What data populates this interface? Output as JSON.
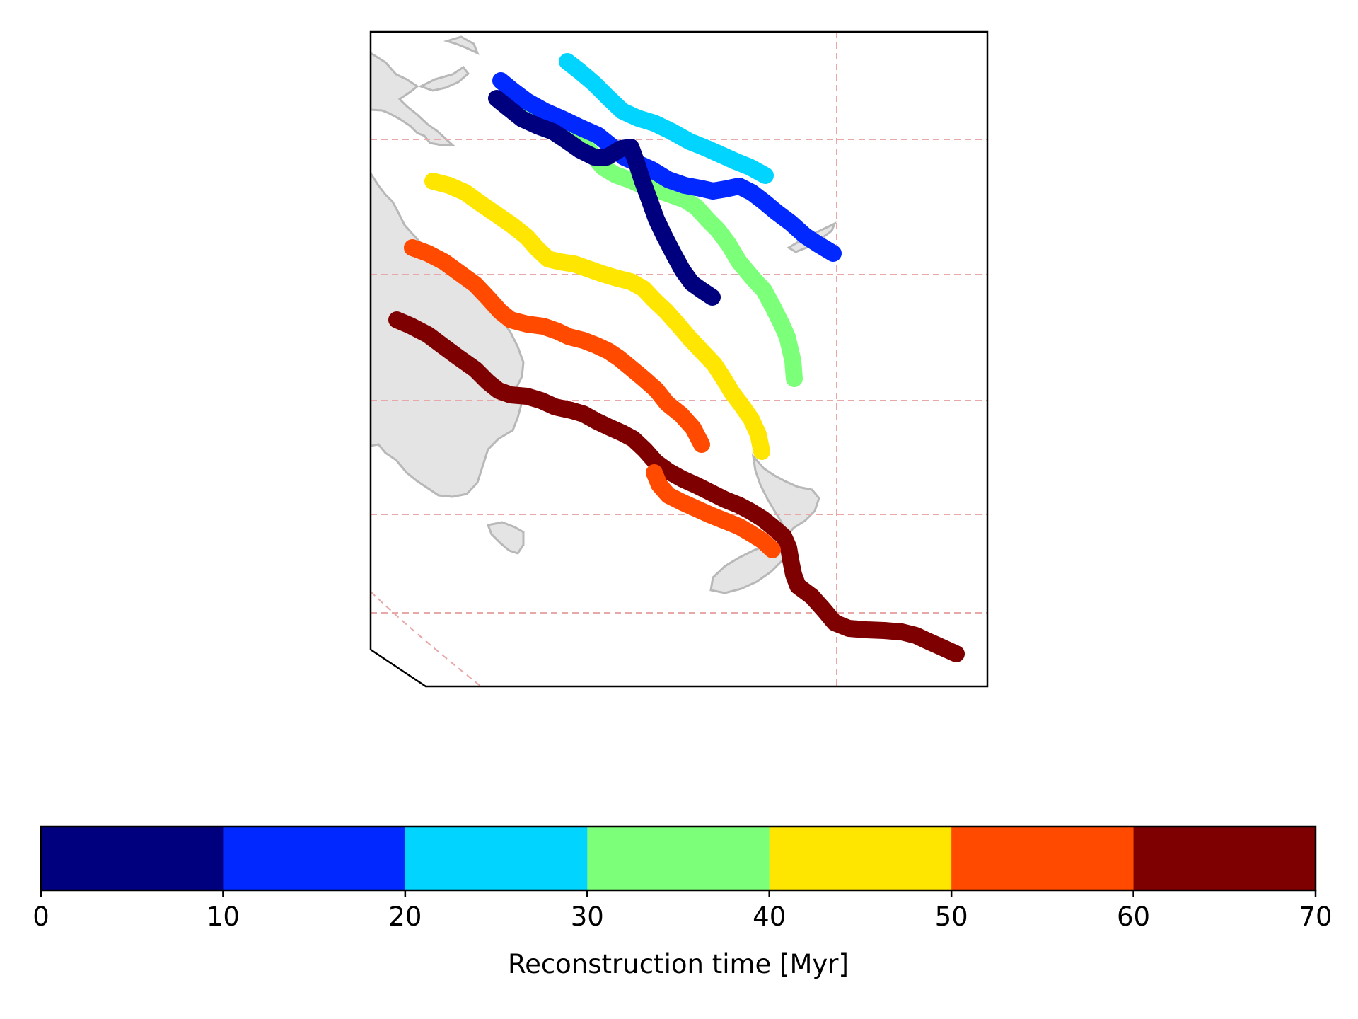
{
  "map": {
    "land_color": "#e4e4e4",
    "coast_color": "#b8b8b8",
    "grid_color": "#e8a8a8"
  },
  "tracks": [
    {
      "period": "0-10",
      "color": "#00007f"
    },
    {
      "period": "10-20",
      "color": "#0028ff"
    },
    {
      "period": "20-30",
      "color": "#00d4ff"
    },
    {
      "period": "30-40",
      "color": "#7cff79"
    },
    {
      "period": "40-50",
      "color": "#ffe600"
    },
    {
      "period": "50-60",
      "color": "#ff4a00"
    },
    {
      "period": "60-70",
      "color": "#7f0000"
    }
  ],
  "colorbar": {
    "label": "Reconstruction time [Myr]",
    "ticks": [
      "0",
      "10",
      "20",
      "30",
      "40",
      "50",
      "60",
      "70"
    ],
    "colors": [
      "#00007f",
      "#0028ff",
      "#00d4ff",
      "#7cff79",
      "#ffe600",
      "#ff4a00",
      "#7f0000"
    ]
  }
}
